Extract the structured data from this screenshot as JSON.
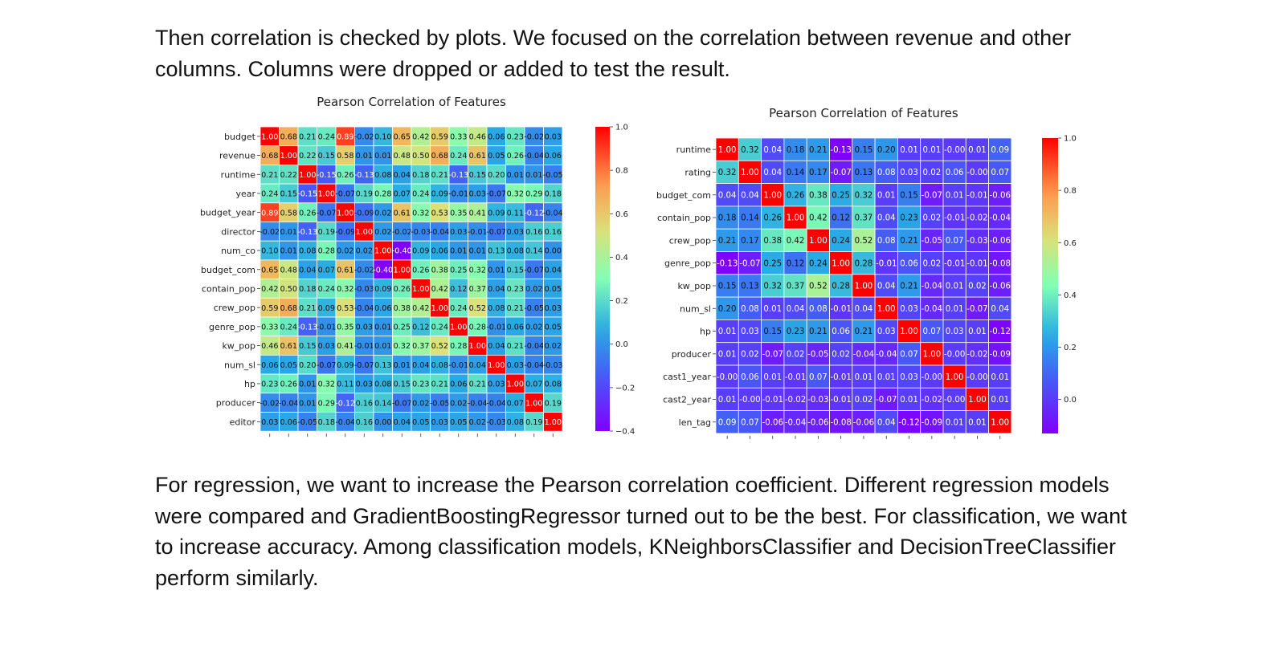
{
  "text": {
    "para1": "Then correlation is checked by plots. We focused on the correlation between revenue and other columns. Columns were dropped or added to test the result.",
    "para2": "For regression, we want to increase the Pearson correlation coefficient. Different regression models were compared and GradientBoostingRegressor turned out to be the best. For classification, we want to increase accuracy. Among classification models, KNeighborsClassifier and DecisionTreeClassifier perform similarly."
  },
  "chart_data": [
    {
      "type": "heatmap",
      "title": "Pearson Correlation of Features",
      "colormap": "rainbow",
      "vmin": -0.4,
      "vmax": 1.0,
      "colorbar_ticks": [
        "1.0",
        "0.8",
        "0.6",
        "0.4",
        "0.2",
        "0.0",
        "−0.2",
        "−0.4"
      ],
      "rows": [
        "budget",
        "revenue",
        "runtime",
        "year",
        "budget_year",
        "director",
        "num_co",
        "budget_com",
        "contain_pop",
        "crew_pop",
        "genre_pop",
        "kw_pop",
        "num_sl",
        "hp",
        "producer",
        "editor"
      ],
      "values": [
        [
          1.0,
          0.68,
          0.21,
          0.24,
          0.89,
          -0.02,
          0.1,
          0.65,
          0.42,
          0.59,
          0.33,
          0.46,
          0.06,
          0.23,
          -0.02,
          0.03
        ],
        [
          0.68,
          1.0,
          0.22,
          0.15,
          0.58,
          0.01,
          0.01,
          0.48,
          0.5,
          0.68,
          0.24,
          0.61,
          0.05,
          0.26,
          -0.04,
          0.06
        ],
        [
          0.21,
          0.22,
          1.0,
          -0.15,
          0.26,
          -0.13,
          0.08,
          0.04,
          0.18,
          0.21,
          -0.13,
          0.15,
          0.2,
          0.01,
          0.01,
          -0.05
        ],
        [
          0.24,
          0.15,
          -0.15,
          1.0,
          -0.07,
          0.19,
          0.28,
          0.07,
          0.24,
          0.09,
          -0.01,
          0.03,
          -0.07,
          0.32,
          0.29,
          0.18
        ],
        [
          0.89,
          0.58,
          0.26,
          -0.07,
          1.0,
          -0.09,
          0.02,
          0.61,
          0.32,
          0.53,
          0.35,
          0.41,
          0.09,
          0.11,
          -0.12,
          -0.04
        ],
        [
          -0.02,
          0.01,
          -0.13,
          0.19,
          -0.09,
          1.0,
          0.02,
          -0.02,
          -0.03,
          -0.04,
          0.03,
          -0.01,
          -0.07,
          0.03,
          0.16,
          0.16
        ],
        [
          0.1,
          0.01,
          0.08,
          0.28,
          0.02,
          0.02,
          1.0,
          -0.4,
          0.09,
          0.06,
          0.01,
          0.01,
          0.13,
          0.08,
          0.14,
          0.0
        ],
        [
          0.65,
          0.48,
          0.04,
          0.07,
          0.61,
          -0.02,
          -0.4,
          1.0,
          0.26,
          0.38,
          0.25,
          0.32,
          0.01,
          0.15,
          -0.07,
          0.04
        ],
        [
          0.42,
          0.5,
          0.18,
          0.24,
          0.32,
          -0.03,
          0.09,
          0.26,
          1.0,
          0.42,
          0.12,
          0.37,
          0.04,
          0.23,
          0.02,
          0.05
        ],
        [
          0.59,
          0.68,
          0.21,
          0.09,
          0.53,
          -0.04,
          0.06,
          0.38,
          0.42,
          1.0,
          0.24,
          0.52,
          0.08,
          0.21,
          -0.05,
          0.03
        ],
        [
          0.33,
          0.24,
          -0.13,
          -0.01,
          0.35,
          0.03,
          0.01,
          0.25,
          0.12,
          0.24,
          1.0,
          0.28,
          -0.01,
          0.06,
          0.02,
          0.05
        ],
        [
          0.46,
          0.61,
          0.15,
          0.03,
          0.41,
          -0.01,
          0.01,
          0.32,
          0.37,
          0.52,
          0.28,
          1.0,
          0.04,
          0.21,
          -0.04,
          0.02
        ],
        [
          0.06,
          0.05,
          0.2,
          -0.07,
          0.09,
          -0.07,
          0.13,
          0.01,
          0.04,
          0.08,
          -0.01,
          0.04,
          1.0,
          0.03,
          -0.04,
          -0.03
        ],
        [
          0.23,
          0.26,
          0.01,
          0.32,
          0.11,
          0.03,
          0.08,
          0.15,
          0.23,
          0.21,
          0.06,
          0.21,
          0.03,
          1.0,
          0.07,
          0.08
        ],
        [
          -0.02,
          -0.04,
          0.01,
          0.29,
          -0.12,
          0.16,
          0.14,
          -0.07,
          0.02,
          -0.05,
          0.02,
          -0.04,
          -0.04,
          0.07,
          1.0,
          0.19
        ],
        [
          0.03,
          0.06,
          -0.05,
          0.18,
          -0.04,
          0.16,
          0.0,
          0.04,
          0.05,
          0.03,
          0.05,
          0.02,
          -0.03,
          0.08,
          0.19,
          1.0
        ]
      ]
    },
    {
      "type": "heatmap",
      "title": "Pearson Correlation of Features",
      "colormap": "rainbow",
      "vmin": -0.13,
      "vmax": 1.0,
      "colorbar_ticks": [
        "1.0",
        "0.8",
        "0.6",
        "0.4",
        "0.2",
        "0.0"
      ],
      "rows": [
        "runtime",
        "rating",
        "budget_com",
        "contain_pop",
        "crew_pop",
        "genre_pop",
        "kw_pop",
        "num_sl",
        "hp",
        "producer",
        "cast1_year",
        "cast2_year",
        "len_tag"
      ],
      "values": [
        [
          1.0,
          0.32,
          0.04,
          0.18,
          0.21,
          -0.13,
          0.15,
          0.2,
          0.01,
          0.01,
          -0.0,
          0.01,
          0.09
        ],
        [
          0.32,
          1.0,
          0.04,
          0.14,
          0.17,
          -0.07,
          0.13,
          0.08,
          0.03,
          0.02,
          0.06,
          -0.0,
          0.07
        ],
        [
          0.04,
          0.04,
          1.0,
          0.26,
          0.38,
          0.25,
          0.32,
          0.01,
          0.15,
          -0.07,
          0.01,
          -0.01,
          -0.06
        ],
        [
          0.18,
          0.14,
          0.26,
          1.0,
          0.42,
          0.12,
          0.37,
          0.04,
          0.23,
          0.02,
          -0.01,
          -0.02,
          -0.04
        ],
        [
          0.21,
          0.17,
          0.38,
          0.42,
          1.0,
          0.24,
          0.52,
          0.08,
          0.21,
          -0.05,
          0.07,
          -0.03,
          -0.06
        ],
        [
          -0.13,
          -0.07,
          0.25,
          0.12,
          0.24,
          1.0,
          0.28,
          -0.01,
          0.06,
          0.02,
          -0.01,
          -0.01,
          -0.08
        ],
        [
          0.15,
          0.13,
          0.32,
          0.37,
          0.52,
          0.28,
          1.0,
          0.04,
          0.21,
          -0.04,
          0.01,
          0.02,
          -0.06
        ],
        [
          0.2,
          0.08,
          0.01,
          0.04,
          0.08,
          -0.01,
          0.04,
          1.0,
          0.03,
          -0.04,
          0.01,
          -0.07,
          0.04
        ],
        [
          0.01,
          0.03,
          0.15,
          0.23,
          0.21,
          0.06,
          0.21,
          0.03,
          1.0,
          0.07,
          0.03,
          0.01,
          -0.12
        ],
        [
          0.01,
          0.02,
          -0.07,
          0.02,
          -0.05,
          0.02,
          -0.04,
          -0.04,
          0.07,
          1.0,
          -0.0,
          -0.02,
          -0.09
        ],
        [
          -0.0,
          0.06,
          0.01,
          -0.01,
          0.07,
          -0.01,
          0.01,
          0.01,
          0.03,
          -0.0,
          1.0,
          -0.0,
          0.01
        ],
        [
          0.01,
          -0.0,
          -0.01,
          -0.02,
          -0.03,
          -0.01,
          0.02,
          -0.07,
          0.01,
          -0.02,
          -0.0,
          1.0,
          0.01
        ],
        [
          0.09,
          0.07,
          -0.06,
          -0.04,
          -0.06,
          -0.08,
          -0.06,
          0.04,
          -0.12,
          -0.09,
          0.01,
          0.01,
          1.0
        ]
      ]
    }
  ]
}
